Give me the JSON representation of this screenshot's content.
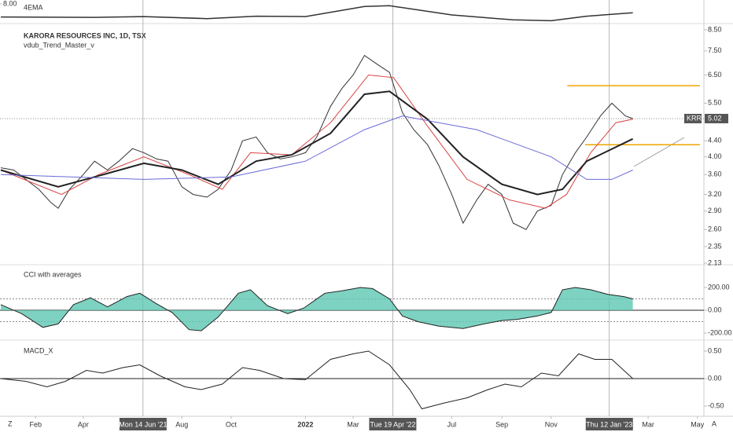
{
  "chart_data": [
    {
      "type": "line",
      "title": "KARORA RESOURCES INC, 1D, TSX",
      "subtitle": "vdub_Trend_Master_v",
      "log_scale": true,
      "xlim": [
        "2020-12-19",
        "2023-05-09"
      ],
      "ylim": [
        2.11,
        8.82
      ],
      "yticks": [
        {
          "value": 8.5,
          "label": "8.50"
        },
        {
          "value": 7.5,
          "label": "7.50"
        },
        {
          "value": 6.5,
          "label": "6.50"
        },
        {
          "value": 5.5,
          "label": "5.50"
        },
        {
          "value": 4.4,
          "label": "4.40"
        },
        {
          "value": 4,
          "label": "4.00"
        },
        {
          "value": 3.6,
          "label": "3.60"
        },
        {
          "value": 3.2,
          "label": "3.20"
        },
        {
          "value": 2.9,
          "label": "2.90"
        },
        {
          "value": 2.6,
          "label": "2.60"
        },
        {
          "value": 2.35,
          "label": "2.35"
        },
        {
          "value": 2.13,
          "label": "2.13"
        }
      ],
      "xticks": [
        {
          "value": "2021-02-01",
          "label": "Feb"
        },
        {
          "value": "2021-04-01",
          "label": "Apr"
        },
        {
          "value": "2021-08-01",
          "label": "Aug"
        },
        {
          "value": "2021-10-01",
          "label": "Oct"
        },
        {
          "value": "2022-01-01",
          "label": "2022"
        },
        {
          "value": "2022-03-01",
          "label": "Mar"
        },
        {
          "value": "2022-07-01",
          "label": "Jul"
        },
        {
          "value": "2022-09-01",
          "label": "Sep"
        },
        {
          "value": "2022-11-01",
          "label": "Nov"
        },
        {
          "value": "2023-03-01",
          "label": "Mar"
        },
        {
          "value": "2023-05-01",
          "label": "May"
        }
      ],
      "markers": [
        {
          "value": "2021-06-14",
          "label": "Mon 14 Jun '21"
        },
        {
          "value": "2022-04-19",
          "label": "Tue 19 Apr '22"
        },
        {
          "value": "2023-01-12",
          "label": "Thu 12 Jan '23"
        }
      ],
      "last": {
        "name": "KRR",
        "value": 5.02,
        "label": "5.02"
      },
      "levels": [
        {
          "value": 6.1,
          "from": "2022-11-21",
          "color": "#f0a500"
        },
        {
          "value": 4.3,
          "from": "2022-12-13",
          "color": "#f0a500"
        }
      ],
      "series": [
        {
          "color": "#333333",
          "width": 1,
          "x": [
            "2020-12-20",
            "2021-01-05",
            "2021-01-20",
            "2021-02-05",
            "2021-02-20",
            "2021-03-01",
            "2021-03-15",
            "2021-04-01",
            "2021-04-15",
            "2021-05-01",
            "2021-05-15",
            "2021-06-01",
            "2021-06-15",
            "2021-07-01",
            "2021-07-15",
            "2021-08-01",
            "2021-08-15",
            "2021-09-01",
            "2021-09-15",
            "2021-10-01",
            "2021-10-15",
            "2021-11-01",
            "2021-11-15",
            "2021-12-01",
            "2021-12-15",
            "2022-01-01",
            "2022-01-15",
            "2022-02-01",
            "2022-02-15",
            "2022-03-01",
            "2022-03-15",
            "2022-04-01",
            "2022-04-15",
            "2022-05-01",
            "2022-05-15",
            "2022-06-01",
            "2022-06-15",
            "2022-07-01",
            "2022-07-15",
            "2022-08-01",
            "2022-08-15",
            "2022-09-01",
            "2022-09-15",
            "2022-10-01",
            "2022-10-15",
            "2022-11-01",
            "2022-11-15",
            "2022-12-01",
            "2022-12-15",
            "2023-01-01",
            "2023-01-15",
            "2023-02-01",
            "2023-02-10"
          ],
          "values": [
            3.75,
            3.7,
            3.5,
            3.3,
            3.05,
            2.95,
            3.3,
            3.6,
            3.9,
            3.7,
            3.9,
            4.2,
            4.1,
            3.95,
            3.9,
            3.35,
            3.2,
            3.15,
            3.3,
            3.7,
            4.4,
            4.5,
            4.1,
            3.95,
            4.0,
            4.1,
            4.5,
            5.4,
            6.0,
            6.5,
            7.3,
            6.9,
            6.6,
            5.2,
            4.7,
            4.3,
            3.8,
            3.2,
            2.7,
            3.1,
            3.4,
            3.2,
            2.7,
            2.6,
            2.9,
            3.0,
            3.6,
            4.1,
            4.5,
            5.1,
            5.5,
            5.1,
            5.02
          ]
        },
        {
          "color": "#d94040",
          "width": 1,
          "x": [
            "2020-12-20",
            "2021-03-05",
            "2021-04-20",
            "2021-06-15",
            "2021-08-10",
            "2021-09-20",
            "2021-10-25",
            "2021-12-15",
            "2022-02-01",
            "2022-03-20",
            "2022-04-20",
            "2022-06-01",
            "2022-07-20",
            "2022-09-10",
            "2022-10-25",
            "2022-11-20",
            "2022-12-20",
            "2023-01-20",
            "2023-02-10"
          ],
          "values": [
            3.7,
            3.2,
            3.6,
            4.0,
            3.6,
            3.3,
            4.1,
            4.05,
            4.9,
            6.5,
            6.4,
            4.8,
            3.5,
            3.1,
            2.95,
            3.2,
            4.1,
            4.9,
            5.0
          ]
        },
        {
          "color": "#222222",
          "width": 2,
          "x": [
            "2020-12-20",
            "2021-03-01",
            "2021-04-15",
            "2021-06-15",
            "2021-08-01",
            "2021-09-15",
            "2021-11-01",
            "2021-12-15",
            "2022-02-01",
            "2022-03-15",
            "2022-04-15",
            "2022-06-01",
            "2022-07-15",
            "2022-09-01",
            "2022-10-15",
            "2022-11-15",
            "2022-12-15",
            "2023-02-10"
          ],
          "values": [
            3.7,
            3.35,
            3.55,
            3.85,
            3.7,
            3.4,
            3.9,
            4.05,
            4.6,
            5.8,
            5.9,
            5.0,
            4.0,
            3.4,
            3.2,
            3.3,
            3.9,
            4.45
          ]
        },
        {
          "color": "#6a6ad8",
          "width": 1,
          "x": [
            "2020-12-20",
            "2021-06-15",
            "2021-10-01",
            "2022-01-01",
            "2022-03-15",
            "2022-05-01",
            "2022-08-01",
            "2022-11-01",
            "2022-12-15",
            "2023-01-15",
            "2023-02-10"
          ],
          "values": [
            3.6,
            3.5,
            3.55,
            3.9,
            4.7,
            5.1,
            4.7,
            4.0,
            3.5,
            3.5,
            3.7
          ]
        }
      ]
    },
    {
      "type": "area",
      "title": "CCI with averages",
      "ylim": [
        -255,
        393
      ],
      "yticks": [
        {
          "value": 200,
          "label": "200.00"
        },
        {
          "value": 0,
          "label": "0.00"
        },
        {
          "value": -200,
          "label": "-200.00"
        }
      ],
      "hlines": [
        100,
        0,
        -100
      ],
      "series": [
        {
          "color": "#222222",
          "fill": "#5cc7b2",
          "x": [
            "2020-12-20",
            "2021-01-15",
            "2021-02-10",
            "2021-03-01",
            "2021-03-20",
            "2021-04-10",
            "2021-05-01",
            "2021-05-25",
            "2021-06-10",
            "2021-06-30",
            "2021-07-20",
            "2021-08-10",
            "2021-08-25",
            "2021-09-15",
            "2021-10-10",
            "2021-10-25",
            "2021-11-15",
            "2021-12-10",
            "2021-12-30",
            "2022-01-25",
            "2022-02-15",
            "2022-03-10",
            "2022-03-25",
            "2022-04-15",
            "2022-05-01",
            "2022-05-20",
            "2022-06-15",
            "2022-07-15",
            "2022-08-10",
            "2022-09-01",
            "2022-09-20",
            "2022-10-15",
            "2022-11-01",
            "2022-11-15",
            "2022-12-01",
            "2022-12-20",
            "2023-01-10",
            "2023-01-30",
            "2023-02-10"
          ],
          "values": [
            50,
            -30,
            -150,
            -120,
            50,
            110,
            30,
            120,
            150,
            60,
            -20,
            -170,
            -180,
            -60,
            150,
            180,
            40,
            -30,
            20,
            150,
            170,
            200,
            190,
            100,
            -50,
            -100,
            -140,
            -160,
            -120,
            -90,
            -80,
            -50,
            -20,
            180,
            200,
            180,
            140,
            120,
            100
          ]
        }
      ]
    },
    {
      "type": "line",
      "title": "MACD_X",
      "ylim": [
        -0.686,
        0.671
      ],
      "yticks": [
        {
          "value": 0.5,
          "label": "0.50"
        },
        {
          "value": 0,
          "label": "0.00"
        },
        {
          "value": -0.5,
          "label": "-0.50"
        }
      ],
      "hlines": [
        0
      ],
      "series": [
        {
          "color": "#222222",
          "width": 1,
          "x": [
            "2020-12-20",
            "2021-01-20",
            "2021-02-15",
            "2021-03-10",
            "2021-04-05",
            "2021-04-25",
            "2021-05-20",
            "2021-06-10",
            "2021-07-05",
            "2021-08-05",
            "2021-08-25",
            "2021-09-20",
            "2021-10-15",
            "2021-11-05",
            "2021-12-05",
            "2022-01-01",
            "2022-02-01",
            "2022-03-01",
            "2022-03-20",
            "2022-04-15",
            "2022-05-10",
            "2022-05-25",
            "2022-06-20",
            "2022-07-20",
            "2022-08-15",
            "2022-09-05",
            "2022-09-25",
            "2022-10-20",
            "2022-11-10",
            "2022-12-05",
            "2022-12-25",
            "2023-01-15",
            "2023-02-10"
          ],
          "values": [
            0.0,
            -0.05,
            -0.15,
            -0.05,
            0.15,
            0.1,
            0.2,
            0.25,
            0.05,
            -0.15,
            -0.2,
            -0.1,
            0.2,
            0.15,
            0.0,
            -0.02,
            0.35,
            0.45,
            0.5,
            0.25,
            -0.2,
            -0.55,
            -0.45,
            -0.35,
            -0.2,
            -0.1,
            -0.15,
            0.1,
            0.05,
            0.45,
            0.35,
            0.35,
            0.0
          ]
        }
      ]
    },
    {
      "type": "line",
      "title": "4EMA",
      "ylim": [
        2.8,
        7.5
      ],
      "yticks": [
        {
          "value": 8,
          "label": "8.00"
        }
      ],
      "series": [
        {
          "color": "#333333",
          "width": 1.5,
          "x": [
            "2020-12-20",
            "2021-04-15",
            "2021-06-15",
            "2021-09-01",
            "2021-11-01",
            "2022-01-01",
            "2022-03-15",
            "2022-04-15",
            "2022-07-01",
            "2022-09-15",
            "2022-11-01",
            "2022-12-15",
            "2023-02-10"
          ],
          "values": [
            4.0,
            3.9,
            4.1,
            3.6,
            4.2,
            4.1,
            6.5,
            6.7,
            4.5,
            3.3,
            3.1,
            4.2,
            5.0
          ]
        }
      ]
    }
  ],
  "ui": {
    "left_button": "Z",
    "right_button": "A"
  }
}
